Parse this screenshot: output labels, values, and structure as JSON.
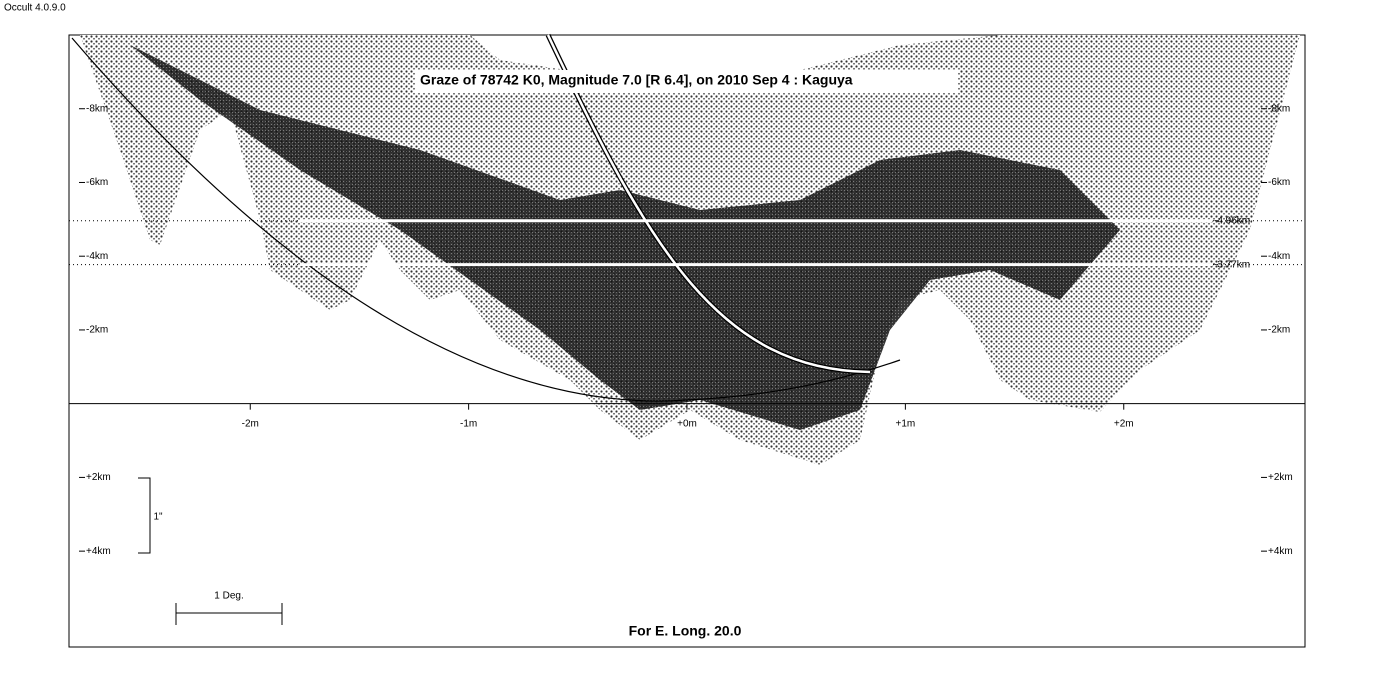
{
  "app_version": "Occult 4.0.9.0",
  "chart_data": {
    "type": "scatter",
    "title": "Graze of  78742 K0,  Magnitude 7.0 [R 6.4],  on 2010 Sep  4  :  Kaguya",
    "xlabel": "For E. Long. 20.0",
    "xlim": [
      -2.83,
      2.83
    ],
    "ylim": [
      -10,
      6.6
    ],
    "y_inverted": true,
    "xticks": [
      {
        "value": -2,
        "label": "-2m"
      },
      {
        "value": -1,
        "label": "-1m"
      },
      {
        "value": 0,
        "label": "+0m"
      },
      {
        "value": 1,
        "label": "+1m"
      },
      {
        "value": 2,
        "label": "+2m"
      }
    ],
    "yticks": [
      {
        "value": -8,
        "label": "-8km"
      },
      {
        "value": -6,
        "label": "-6km"
      },
      {
        "value": -4,
        "label": "-4km"
      },
      {
        "value": -2,
        "label": "-2km"
      },
      {
        "value": 2,
        "label": "+2km"
      },
      {
        "value": 4,
        "label": "+4km"
      }
    ],
    "reference_lines": [
      {
        "value": -4.96,
        "label": "-4.96km"
      },
      {
        "value": -3.77,
        "label": "-3.77km"
      }
    ],
    "annotations": [
      "1\"",
      "1 Deg."
    ]
  }
}
